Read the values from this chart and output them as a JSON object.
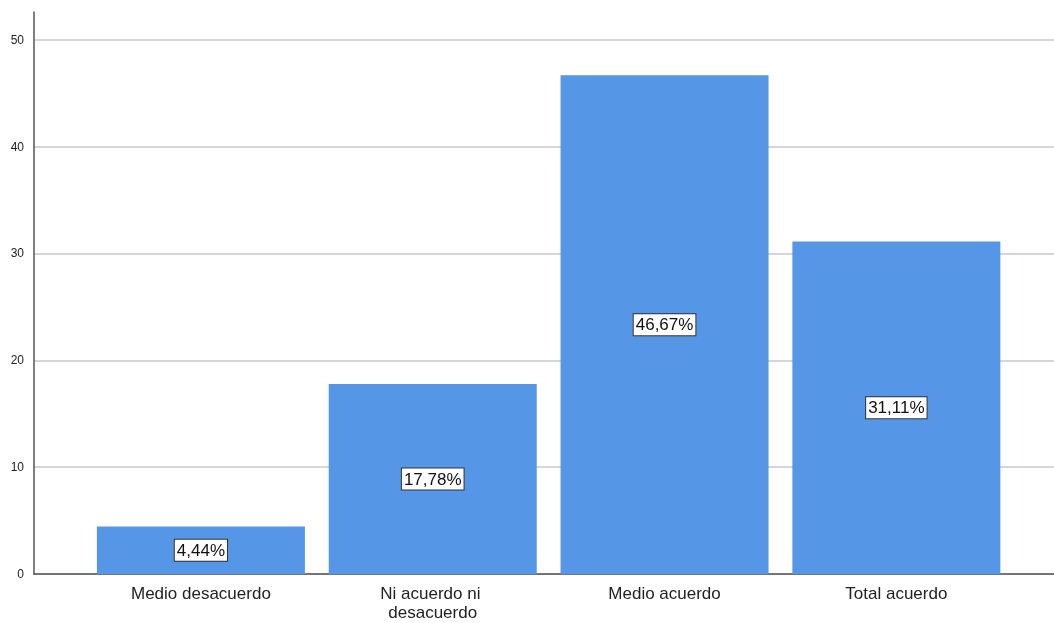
{
  "chart_data": {
    "type": "bar",
    "categories": [
      "Medio desacuerdo",
      "Ni acuerdo ni desacuerdo",
      "Medio acuerdo",
      "Total acuerdo"
    ],
    "values": [
      4.44,
      17.78,
      46.67,
      31.11
    ],
    "color": "#5596e6",
    "value_labels": [
      "4,44%",
      "17,78%",
      "46,67%",
      "31,11%"
    ],
    "ylim": [
      0,
      52.6
    ],
    "yticks": [
      0,
      10,
      20,
      30,
      40,
      50
    ],
    "grid": "y"
  }
}
